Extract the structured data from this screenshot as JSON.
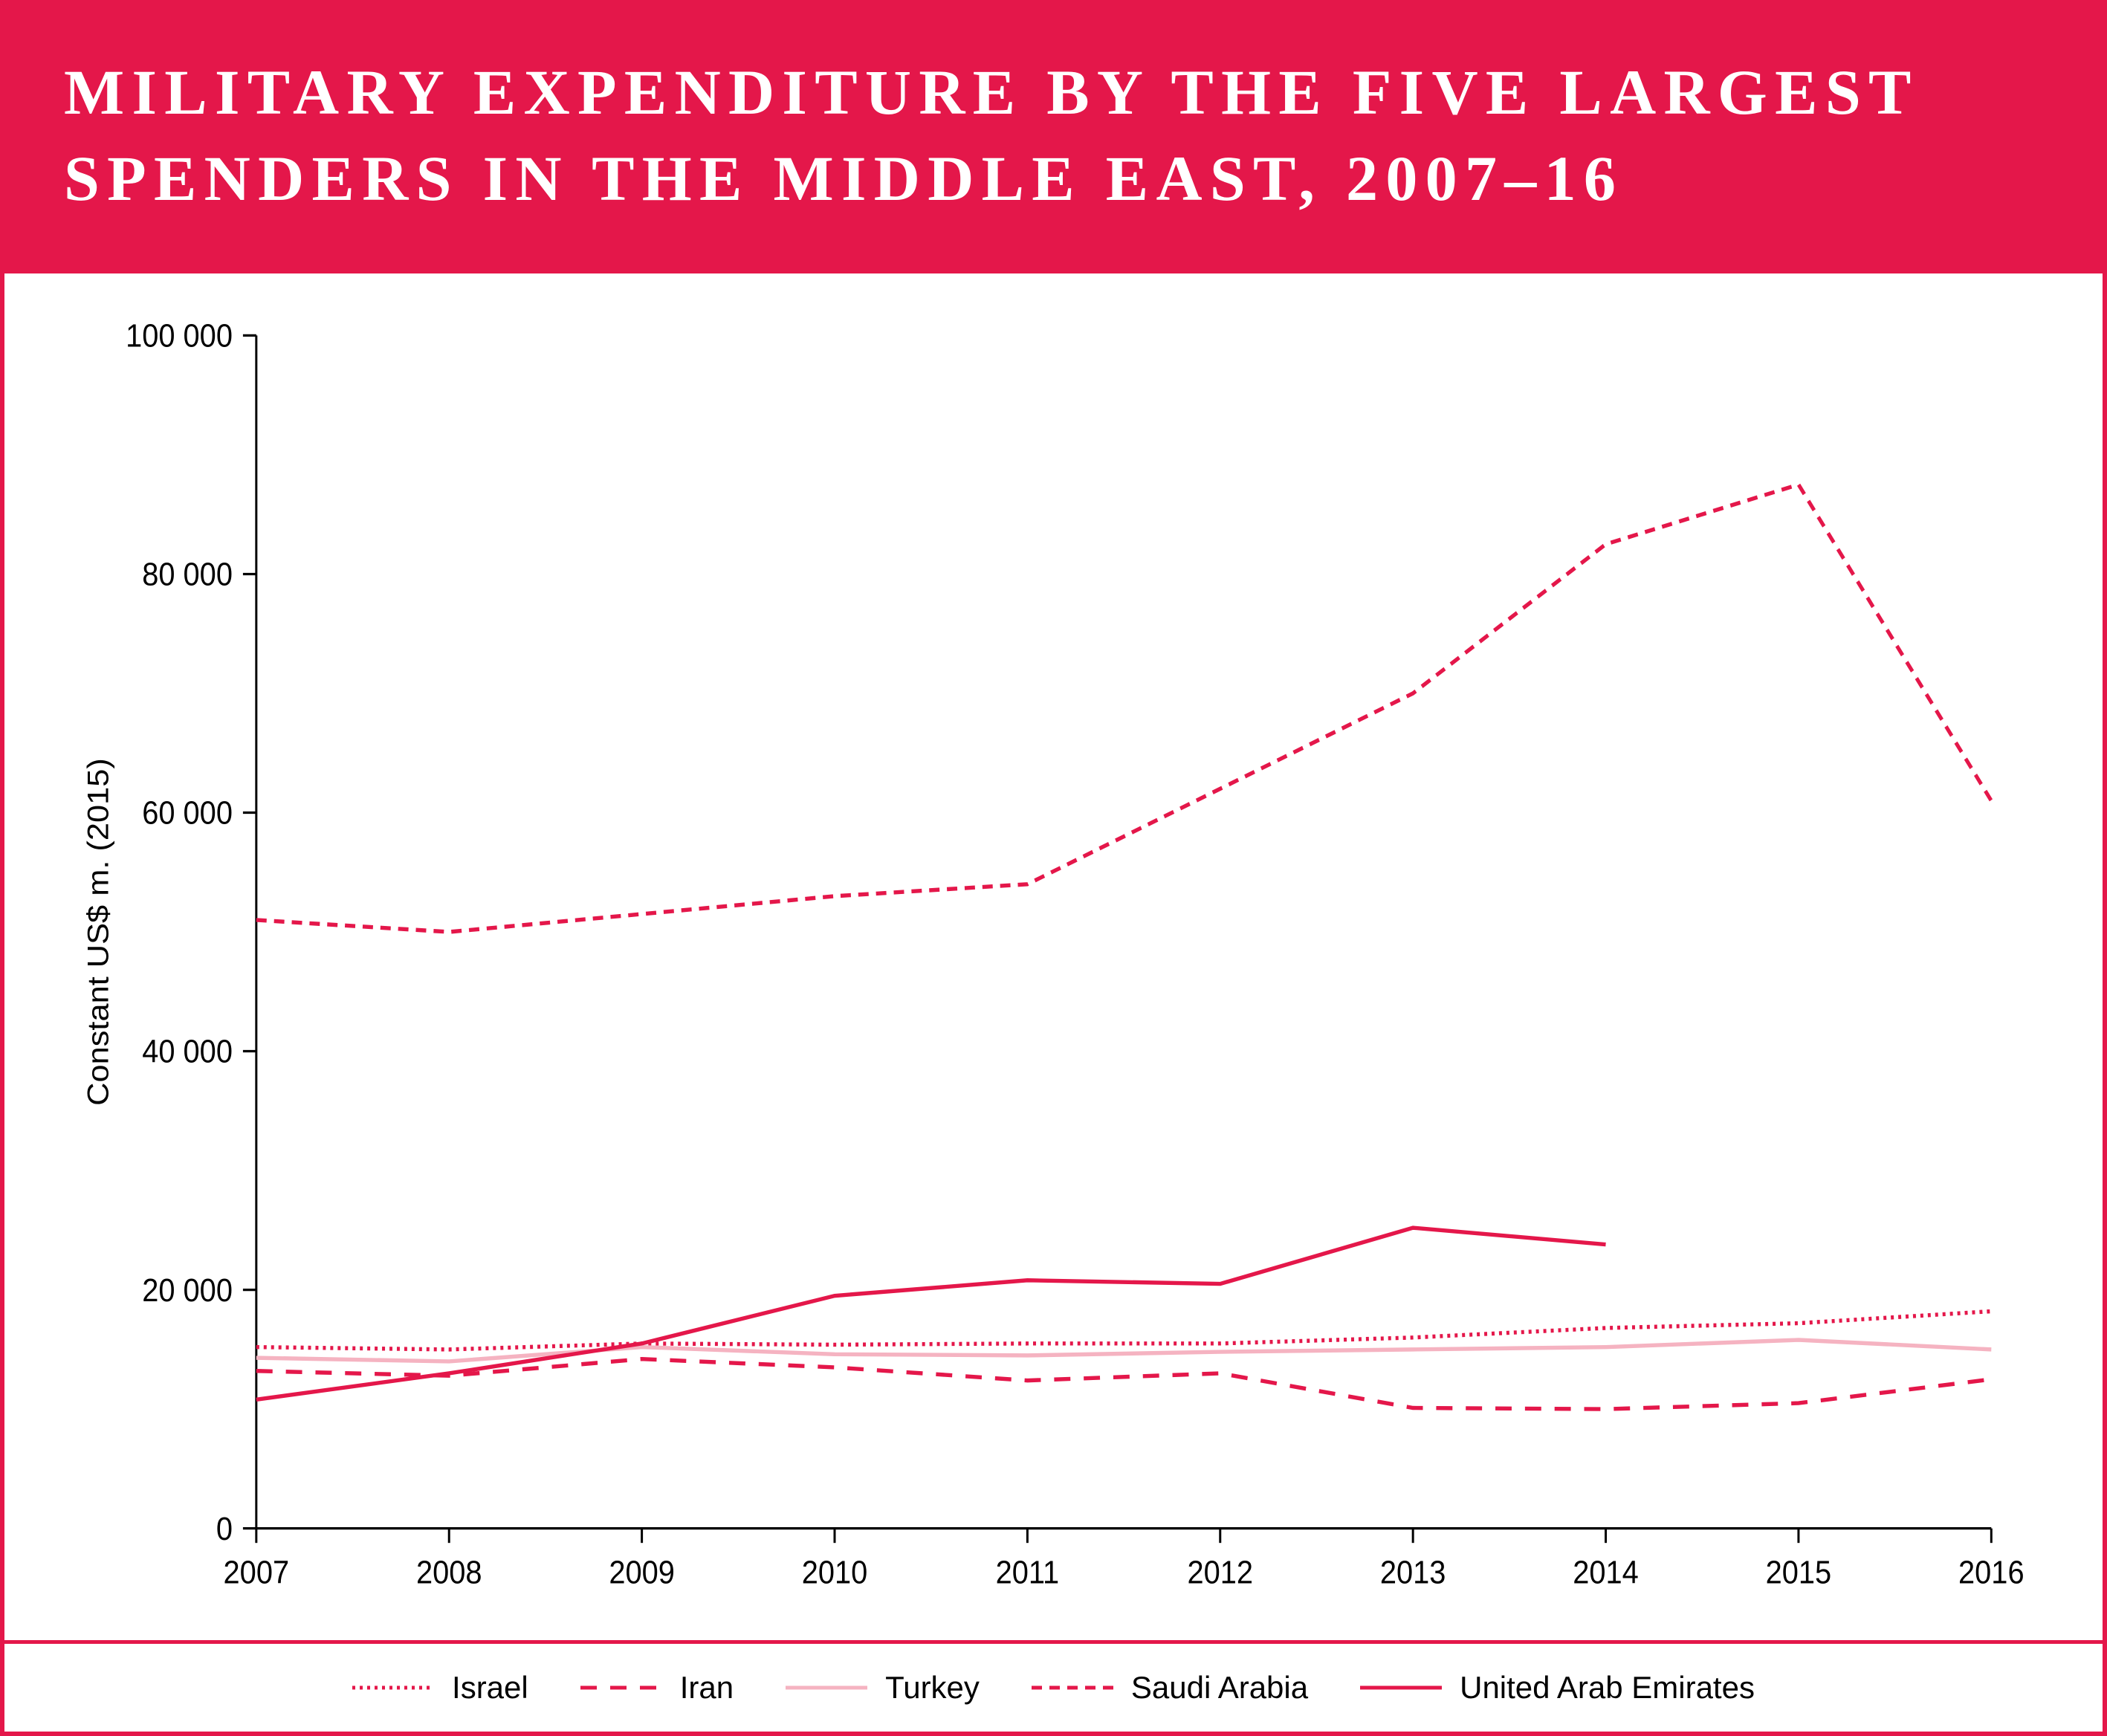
{
  "header": {
    "title": "MILITARY EXPENDITURE BY THE FIVE LARGEST SPENDERS IN THE MIDDLE EAST, 2007–16",
    "title_fontsize": 86,
    "background_color": "#e4174a",
    "text_color": "#ffffff"
  },
  "chart": {
    "type": "line",
    "background_color": "#ffffff",
    "border_color": "#e4174a",
    "ylabel": "Constant US$ m. (2015)",
    "ylabel_fontsize": 40,
    "axis_fontsize": 40,
    "years": [
      2007,
      2008,
      2009,
      2010,
      2011,
      2012,
      2013,
      2014,
      2015,
      2016
    ],
    "ylim": [
      0,
      100000
    ],
    "ytick_step": 20000,
    "ytick_labels": [
      "0",
      "20 000",
      "40 000",
      "60 000",
      "80 000",
      "100 000"
    ],
    "axis_color": "#000000",
    "tick_length": 18,
    "line_width": 5,
    "series": [
      {
        "name": "Israel",
        "label": "Israel",
        "color": "#e4174a",
        "dash": "4,6",
        "values": [
          15200,
          15000,
          15500,
          15400,
          15500,
          15500,
          16000,
          16800,
          17200,
          18200
        ]
      },
      {
        "name": "Iran",
        "label": "Iran",
        "color": "#e4174a",
        "dash": "22,18",
        "values": [
          13200,
          12800,
          14200,
          13500,
          12400,
          13000,
          10100,
          10000,
          10500,
          12500
        ]
      },
      {
        "name": "Turkey",
        "label": "Turkey",
        "color": "#f5b3c1",
        "dash": "none",
        "values": [
          14300,
          14000,
          15200,
          14600,
          14500,
          14800,
          15000,
          15200,
          15800,
          15000
        ]
      },
      {
        "name": "Saudi Arabia",
        "label": "Saudi Arabia",
        "color": "#e4174a",
        "dash": "14,10",
        "values": [
          51000,
          50000,
          51500,
          53000,
          54000,
          62000,
          70000,
          82500,
          87500,
          61000
        ]
      },
      {
        "name": "United Arab Emirates",
        "label": "United Arab Emirates",
        "color": "#e4174a",
        "dash": "none",
        "values": [
          10800,
          13000,
          15500,
          19500,
          20800,
          20500,
          25200,
          23800,
          null,
          null
        ]
      }
    ]
  },
  "legend": {
    "fontsize": 42,
    "text_color": "#000000",
    "border_top_color": "#e4174a"
  }
}
